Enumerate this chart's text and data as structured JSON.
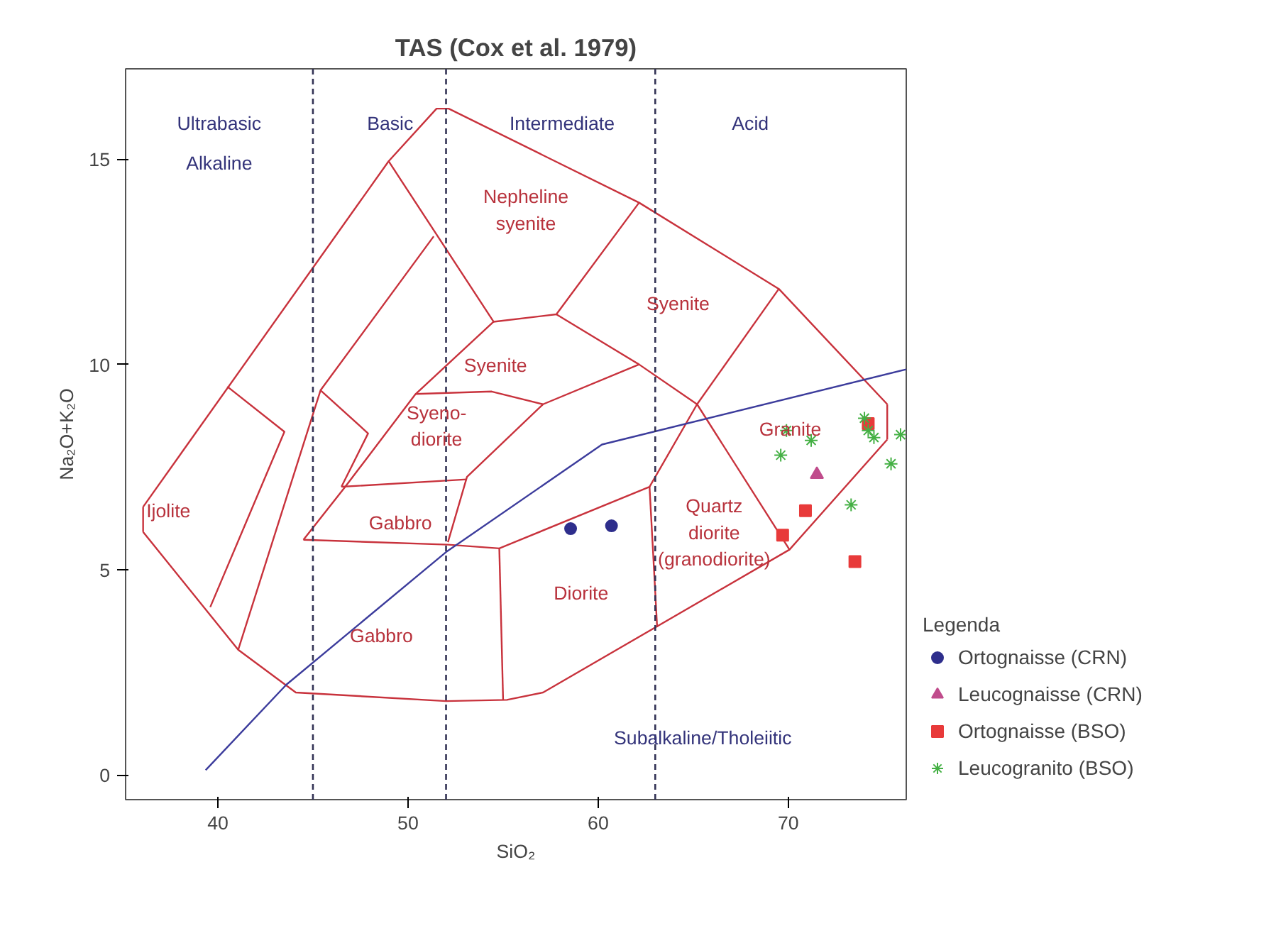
{
  "chart_data": {
    "type": "scatter",
    "title": "TAS (Cox et al. 1979)",
    "xlabel": "SiO₂",
    "ylabel": "Na₂O+K₂O",
    "legend_title": "Legenda",
    "legend": "bottom right",
    "grid": false,
    "xlim": [
      35.15,
      76.2
    ],
    "ylim": [
      -0.6,
      17.2
    ],
    "xticks": [
      40,
      50,
      60,
      70
    ],
    "yticks": [
      0,
      5,
      10,
      15
    ],
    "ref_lines": [
      {
        "axis": "x",
        "value": 45,
        "color": "#333355",
        "line_style": "dashed"
      },
      {
        "axis": "x",
        "value": 52,
        "color": "#333355",
        "line_style": "dashed"
      },
      {
        "axis": "x",
        "value": 63,
        "color": "#333355",
        "line_style": "dashed"
      }
    ],
    "series": [
      {
        "type": "line",
        "color": "#c8323c",
        "marker": "none",
        "x": [
          36.07,
          48.98,
          51.5,
          52.14,
          62.15,
          69.5,
          75.2
        ],
        "values": [
          6.53,
          14.95,
          16.23,
          16.23,
          13.94,
          11.84,
          9.03
        ]
      },
      {
        "type": "line",
        "color": "#c8323c",
        "marker": "none",
        "x": [
          75.2,
          75.2
        ],
        "values": [
          9.03,
          8.17
        ]
      },
      {
        "type": "line",
        "color": "#c8323c",
        "marker": "none",
        "x": [
          36.07,
          41.07,
          44.1,
          52.0,
          55.2,
          57.1,
          70.06,
          75.2
        ],
        "values": [
          5.92,
          3.05,
          2.01,
          1.8,
          1.83,
          2.01,
          5.49,
          8.17
        ]
      },
      {
        "type": "line",
        "color": "#c8323c",
        "marker": "none",
        "x": [
          36.07,
          36.07
        ],
        "values": [
          5.92,
          6.53
        ]
      },
      {
        "type": "line",
        "color": "#c8323c",
        "marker": "none",
        "x": [
          40.5,
          43.5,
          39.6
        ],
        "values": [
          9.46,
          8.36,
          4.09
        ]
      },
      {
        "type": "line",
        "color": "#c8323c",
        "marker": "none",
        "x": [
          51.35,
          45.4,
          41.07
        ],
        "values": [
          13.12,
          9.37,
          3.05
        ]
      },
      {
        "type": "line",
        "color": "#c8323c",
        "marker": "none",
        "x": [
          45.4,
          47.9,
          46.5
        ],
        "values": [
          9.37,
          8.32,
          7.02
        ]
      },
      {
        "type": "line",
        "color": "#c8323c",
        "marker": "none",
        "x": [
          48.98,
          54.5,
          57.8,
          62.15
        ],
        "values": [
          14.95,
          11.04,
          11.22,
          13.94
        ]
      },
      {
        "type": "line",
        "color": "#c8323c",
        "marker": "none",
        "x": [
          57.8,
          62.15,
          65.2,
          69.5
        ],
        "values": [
          11.22,
          10.0,
          9.03,
          11.84
        ]
      },
      {
        "type": "line",
        "color": "#c8323c",
        "marker": "none",
        "x": [
          54.5,
          50.4,
          46.7,
          44.5
        ],
        "values": [
          11.04,
          9.28,
          7.02,
          5.73
        ]
      },
      {
        "type": "line",
        "color": "#c8323c",
        "marker": "none",
        "x": [
          50.4,
          54.4,
          57.1,
          62.15
        ],
        "values": [
          9.28,
          9.34,
          9.03,
          10.0
        ]
      },
      {
        "type": "line",
        "color": "#c8323c",
        "marker": "none",
        "x": [
          57.1,
          53.1,
          52.1
        ],
        "values": [
          9.03,
          7.26,
          5.67
        ]
      },
      {
        "type": "line",
        "color": "#c8323c",
        "marker": "none",
        "x": [
          46.5,
          53.1
        ],
        "values": [
          7.02,
          7.2
        ]
      },
      {
        "type": "line",
        "color": "#c8323c",
        "marker": "none",
        "x": [
          44.5,
          52.1,
          54.8,
          62.7,
          65.2
        ],
        "values": [
          5.73,
          5.61,
          5.52,
          7.02,
          9.03
        ]
      },
      {
        "type": "line",
        "color": "#c8323c",
        "marker": "none",
        "x": [
          54.8,
          55.0
        ],
        "values": [
          5.52,
          1.83
        ]
      },
      {
        "type": "line",
        "color": "#c8323c",
        "marker": "none",
        "x": [
          62.7,
          63.1
        ],
        "values": [
          7.02,
          3.6
        ]
      },
      {
        "type": "line",
        "color": "#c8323c",
        "marker": "none",
        "x": [
          65.2,
          70.06
        ],
        "values": [
          9.03,
          5.49
        ]
      },
      {
        "type": "line",
        "color": "#3c3c9c",
        "marker": "none",
        "x": [
          39.36,
          43.6,
          52.0,
          60.2,
          76.2
        ],
        "values": [
          0.12,
          2.2,
          5.43,
          8.05,
          9.88
        ]
      },
      {
        "name": "Ortognaisse (CRN)",
        "color": "#2e2e8c",
        "marker": "circle",
        "x": [
          58.55,
          60.7
        ],
        "values": [
          6.0,
          6.07
        ]
      },
      {
        "name": "Leucognaisse (CRN)",
        "color": "#c04c8c",
        "marker": "triangle",
        "x": [
          71.5
        ],
        "values": [
          7.32
        ]
      },
      {
        "name": "Ortognaisse (BSO)",
        "color": "#e83a3a",
        "marker": "square",
        "x": [
          69.7,
          70.9,
          73.5,
          74.2
        ],
        "values": [
          5.84,
          6.44,
          5.2,
          8.56
        ]
      },
      {
        "name": "Leucogranito (BSO)",
        "color": "#44b044",
        "marker": "cross",
        "x": [
          74.0,
          74.2,
          74.5,
          69.9,
          71.2,
          69.6,
          75.4,
          73.3,
          75.9
        ],
        "values": [
          8.69,
          8.39,
          8.22,
          8.39,
          8.15,
          7.79,
          7.58,
          6.58,
          8.29
        ]
      }
    ],
    "annotations": [
      "Ultrabasic",
      "Alkaline",
      "Basic",
      "Intermediate",
      "Acid",
      "Subalkaline/Tholeiitic",
      "Nepheline\nsyenite",
      "Syenite",
      "Syenite",
      "Syeno-\ndiorite",
      "Ijolite",
      "Gabbro",
      "Quartz\ndiorite\n(granodiorite)",
      "Granite",
      "Diorite",
      "Gabbro"
    ]
  }
}
